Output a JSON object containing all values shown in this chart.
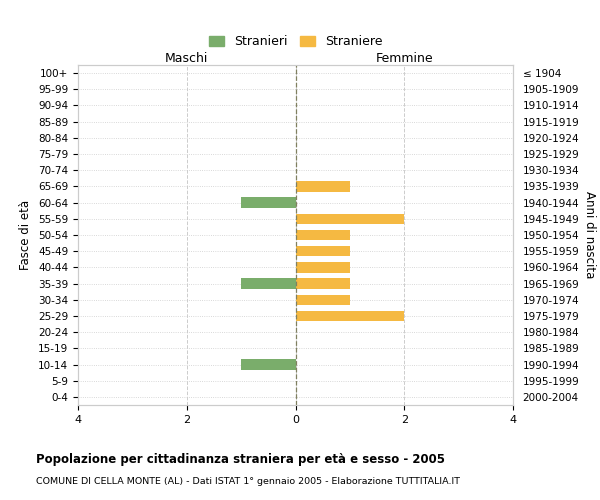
{
  "age_groups": [
    "100+",
    "95-99",
    "90-94",
    "85-89",
    "80-84",
    "75-79",
    "70-74",
    "65-69",
    "60-64",
    "55-59",
    "50-54",
    "45-49",
    "40-44",
    "35-39",
    "30-34",
    "25-29",
    "20-24",
    "15-19",
    "10-14",
    "5-9",
    "0-4"
  ],
  "birth_years": [
    "≤ 1904",
    "1905-1909",
    "1910-1914",
    "1915-1919",
    "1920-1924",
    "1925-1929",
    "1930-1934",
    "1935-1939",
    "1940-1944",
    "1945-1949",
    "1950-1954",
    "1955-1959",
    "1960-1964",
    "1965-1969",
    "1970-1974",
    "1975-1979",
    "1980-1984",
    "1985-1989",
    "1990-1994",
    "1995-1999",
    "2000-2004"
  ],
  "males": [
    0,
    0,
    0,
    0,
    0,
    0,
    0,
    0,
    1,
    0,
    0,
    0,
    0,
    1,
    0,
    0,
    0,
    0,
    1,
    0,
    0
  ],
  "females": [
    0,
    0,
    0,
    0,
    0,
    0,
    0,
    1,
    0,
    2,
    1,
    1,
    1,
    1,
    1,
    2,
    0,
    0,
    0,
    0,
    0
  ],
  "male_color": "#7aad6b",
  "female_color": "#f5b942",
  "male_label": "Stranieri",
  "female_label": "Straniere",
  "title": "Popolazione per cittadinanza straniera per età e sesso - 2005",
  "subtitle": "COMUNE DI CELLA MONTE (AL) - Dati ISTAT 1° gennaio 2005 - Elaborazione TUTTITALIA.IT",
  "xlabel_left": "Maschi",
  "xlabel_right": "Femmine",
  "ylabel_left": "Fasce di età",
  "ylabel_right": "Anni di nascita",
  "xlim": 4,
  "xticks": [
    -4,
    -2,
    0,
    2,
    4
  ],
  "xticklabels": [
    "4",
    "2",
    "0",
    "2",
    "4"
  ],
  "bg_color": "#ffffff",
  "grid_color": "#cccccc",
  "center_line_color": "#808060",
  "spine_color": "#cccccc"
}
